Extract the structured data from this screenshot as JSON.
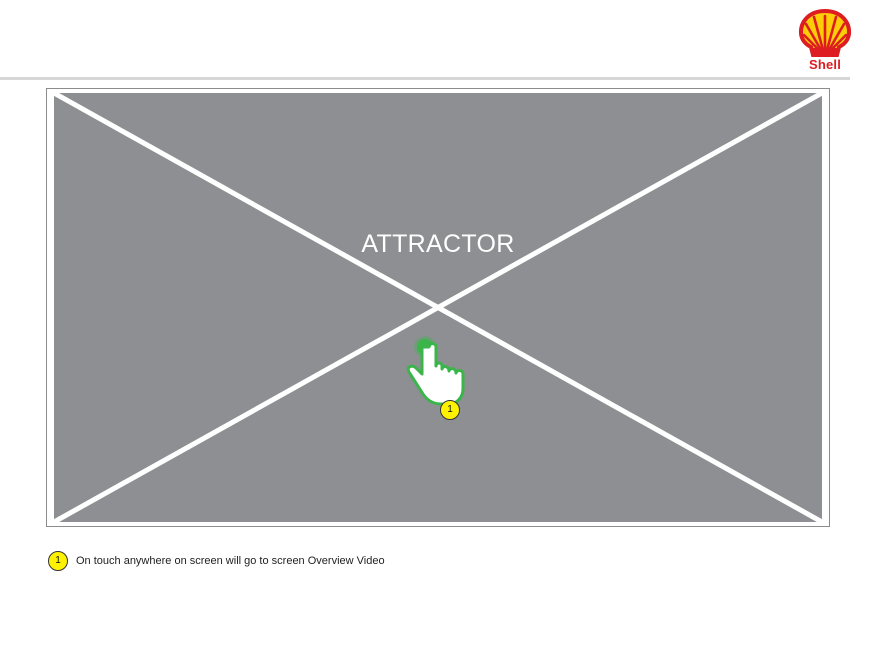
{
  "brand": {
    "logo_text": "Shell",
    "logo_icon": "shell-pecten-icon",
    "red": "#dd1d21",
    "yellow": "#fbce07"
  },
  "screen": {
    "label": "ATTRACTOR",
    "placeholder_color": "#8e8f93",
    "cross_color": "#ffffff"
  },
  "gesture": {
    "icon": "tap-hand-icon",
    "accent": "#3ab54a"
  },
  "annotations": [
    {
      "number": "1",
      "text": "On touch anywhere on screen will go to screen Overview Video"
    }
  ]
}
